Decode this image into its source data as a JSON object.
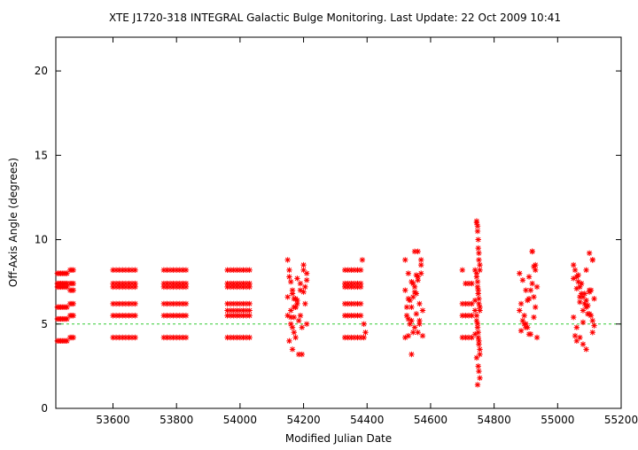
{
  "chart_data": {
    "type": "scatter",
    "title": "XTE J1720-318   INTEGRAL Galactic Bulge Monitoring.  Last Update: 22 Oct 2009 10:41",
    "xlabel": "Modified Julian Date",
    "ylabel": "Off-Axis Angle (degrees)",
    "xlim": [
      53420,
      55200
    ],
    "ylim": [
      0,
      22
    ],
    "x_ticks": [
      53600,
      53800,
      54000,
      54200,
      54400,
      54600,
      54800,
      55000,
      55200
    ],
    "y_ticks": [
      0,
      5,
      10,
      15,
      20
    ],
    "grid": false,
    "legend": "none",
    "reference_line": {
      "y": 5,
      "color": "#33cc33",
      "style": "dashed"
    },
    "marker": {
      "symbol": "asterisk",
      "color": "#ff0000"
    },
    "series": [
      {
        "x": [
          53425,
          53430,
          53435,
          53440,
          53445,
          53450,
          53455,
          53425,
          53430,
          53435,
          53440,
          53445,
          53450,
          53455,
          53425,
          53430,
          53435,
          53440,
          53445,
          53450,
          53455,
          53425,
          53430,
          53435,
          53440,
          53445,
          53450,
          53455,
          53425,
          53430,
          53435,
          53440,
          53445,
          53450,
          53455,
          53425,
          53430,
          53435,
          53440,
          53445,
          53450,
          53455,
          53465,
          53470,
          53475,
          53465,
          53470,
          53475,
          53465,
          53470,
          53475,
          53465,
          53470,
          53475,
          53465,
          53470,
          53475,
          53465,
          53470,
          53475,
          53600,
          53610,
          53620,
          53630,
          53640,
          53650,
          53660,
          53670,
          53600,
          53610,
          53620,
          53630,
          53640,
          53650,
          53660,
          53670,
          53600,
          53610,
          53620,
          53630,
          53640,
          53650,
          53660,
          53670,
          53600,
          53610,
          53620,
          53630,
          53640,
          53650,
          53660,
          53670,
          53600,
          53610,
          53620,
          53630,
          53640,
          53650,
          53660,
          53670,
          53600,
          53610,
          53620,
          53630,
          53640,
          53650,
          53660,
          53670,
          53760,
          53770,
          53780,
          53790,
          53800,
          53810,
          53820,
          53830,
          53760,
          53770,
          53780,
          53790,
          53800,
          53810,
          53820,
          53830,
          53760,
          53770,
          53780,
          53790,
          53800,
          53810,
          53820,
          53830,
          53760,
          53770,
          53780,
          53790,
          53800,
          53810,
          53820,
          53830,
          53760,
          53770,
          53780,
          53790,
          53800,
          53810,
          53820,
          53830,
          53760,
          53770,
          53780,
          53790,
          53800,
          53810,
          53820,
          53830,
          53960,
          53970,
          53980,
          53990,
          54000,
          54010,
          54020,
          54030,
          53960,
          53970,
          53980,
          53990,
          54000,
          54010,
          54020,
          54030,
          53960,
          53970,
          53980,
          53990,
          54000,
          54010,
          54020,
          54030,
          53960,
          53970,
          53980,
          53990,
          54000,
          54010,
          54020,
          54030,
          53960,
          53970,
          53980,
          53990,
          54000,
          54010,
          54020,
          54030,
          53960,
          53970,
          53980,
          53990,
          54000,
          54010,
          54020,
          54030,
          53960,
          53970,
          53980,
          53990,
          54000,
          54010,
          54020,
          54030,
          54150,
          54155,
          54160,
          54165,
          54170,
          54175,
          54150,
          54160,
          54170,
          54180,
          54190,
          54200,
          54210,
          54155,
          54165,
          54175,
          54185,
          54195,
          54205,
          54150,
          54160,
          54170,
          54180,
          54190,
          54200,
          54210,
          54155,
          54165,
          54175,
          54185,
          54195,
          54205,
          54160,
          54180,
          54200,
          54170,
          54190,
          54210,
          54165,
          54175,
          54330,
          54340,
          54350,
          54360,
          54370,
          54380,
          54330,
          54340,
          54350,
          54360,
          54370,
          54380,
          54330,
          54340,
          54350,
          54360,
          54370,
          54380,
          54330,
          54340,
          54350,
          54360,
          54370,
          54380,
          54330,
          54340,
          54350,
          54360,
          54370,
          54380,
          54330,
          54340,
          54350,
          54360,
          54370,
          54380,
          54385,
          54390,
          54395,
          54390,
          54520,
          54530,
          54540,
          54550,
          54560,
          54570,
          54520,
          54530,
          54540,
          54550,
          54560,
          54570,
          54525,
          54535,
          54545,
          54555,
          54565,
          54575,
          54520,
          54530,
          54540,
          54550,
          54560,
          54570,
          54525,
          54535,
          54545,
          54555,
          54565,
          54575,
          54540,
          54550,
          54560,
          54530,
          54545,
          54555,
          54565,
          54700,
          54710,
          54720,
          54730,
          54740,
          54700,
          54710,
          54720,
          54730,
          54740,
          54700,
          54710,
          54720,
          54730,
          54740,
          54700,
          54710,
          54720,
          54730,
          54740,
          54745,
          54748,
          54750,
          54752,
          54755,
          54745,
          54748,
          54750,
          54752,
          54755,
          54745,
          54748,
          54750,
          54752,
          54755,
          54745,
          54748,
          54750,
          54752,
          54755,
          54745,
          54748,
          54750,
          54752,
          54755,
          54745,
          54748,
          54750,
          54752,
          54755,
          54745,
          54750,
          54755,
          54748,
          54752,
          54880,
          54890,
          54900,
          54910,
          54920,
          54930,
          54880,
          54890,
          54900,
          54910,
          54920,
          54930,
          54885,
          54895,
          54905,
          54915,
          54925,
          54935,
          54885,
          54895,
          54905,
          54915,
          54925,
          54935,
          54920,
          54925,
          54930,
          54910,
          54900,
          55050,
          55060,
          55070,
          55080,
          55090,
          55100,
          55110,
          55050,
          55060,
          55070,
          55080,
          55090,
          55100,
          55110,
          55055,
          55065,
          55075,
          55085,
          55095,
          55105,
          55115,
          55055,
          55065,
          55075,
          55085,
          55095,
          55105,
          55115,
          55050,
          55060,
          55070,
          55080,
          55090,
          55100,
          55110,
          55060,
          55080,
          55100,
          55070,
          55090,
          55110
        ],
        "y": [
          7.2,
          7.2,
          7.2,
          7.2,
          7.2,
          7.2,
          7.2,
          8.0,
          8.0,
          8.0,
          8.0,
          8.0,
          8.0,
          8.0,
          6.0,
          6.0,
          6.0,
          6.0,
          6.0,
          6.0,
          6.0,
          5.3,
          5.3,
          5.3,
          5.3,
          5.3,
          5.3,
          5.3,
          4.0,
          4.0,
          4.0,
          4.0,
          4.0,
          4.0,
          4.0,
          7.4,
          7.4,
          7.4,
          7.4,
          7.4,
          7.4,
          7.4,
          8.2,
          8.2,
          8.2,
          7.4,
          7.4,
          7.4,
          6.2,
          6.2,
          6.2,
          5.5,
          5.5,
          5.5,
          4.2,
          4.2,
          4.2,
          7.0,
          7.0,
          7.0,
          8.2,
          8.2,
          8.2,
          8.2,
          8.2,
          8.2,
          8.2,
          8.2,
          7.4,
          7.4,
          7.4,
          7.4,
          7.4,
          7.4,
          7.4,
          7.4,
          6.2,
          6.2,
          6.2,
          6.2,
          6.2,
          6.2,
          6.2,
          6.2,
          5.5,
          5.5,
          5.5,
          5.5,
          5.5,
          5.5,
          5.5,
          5.5,
          4.2,
          4.2,
          4.2,
          4.2,
          4.2,
          4.2,
          4.2,
          4.2,
          7.2,
          7.2,
          7.2,
          7.2,
          7.2,
          7.2,
          7.2,
          7.2,
          8.2,
          8.2,
          8.2,
          8.2,
          8.2,
          8.2,
          8.2,
          8.2,
          7.4,
          7.4,
          7.4,
          7.4,
          7.4,
          7.4,
          7.4,
          7.4,
          6.2,
          6.2,
          6.2,
          6.2,
          6.2,
          6.2,
          6.2,
          6.2,
          5.5,
          5.5,
          5.5,
          5.5,
          5.5,
          5.5,
          5.5,
          5.5,
          4.2,
          4.2,
          4.2,
          4.2,
          4.2,
          4.2,
          4.2,
          4.2,
          7.2,
          7.2,
          7.2,
          7.2,
          7.2,
          7.2,
          7.2,
          7.2,
          8.2,
          8.2,
          8.2,
          8.2,
          8.2,
          8.2,
          8.2,
          8.2,
          7.4,
          7.4,
          7.4,
          7.4,
          7.4,
          7.4,
          7.4,
          7.4,
          6.2,
          6.2,
          6.2,
          6.2,
          6.2,
          6.2,
          6.2,
          6.2,
          5.5,
          5.5,
          5.5,
          5.5,
          5.5,
          5.5,
          5.5,
          5.5,
          4.2,
          4.2,
          4.2,
          4.2,
          4.2,
          4.2,
          4.2,
          4.2,
          7.2,
          7.2,
          7.2,
          7.2,
          7.2,
          7.2,
          7.2,
          7.2,
          5.8,
          5.8,
          5.8,
          5.8,
          5.8,
          5.8,
          5.8,
          5.8,
          8.8,
          8.2,
          7.5,
          7.0,
          6.5,
          6.0,
          5.5,
          5.0,
          4.5,
          6.2,
          7.4,
          8.5,
          8.0,
          7.8,
          6.8,
          6.0,
          5.2,
          4.8,
          7.2,
          6.6,
          5.8,
          5.4,
          6.4,
          7.0,
          8.2,
          5.0,
          4.0,
          3.5,
          4.2,
          3.2,
          3.2,
          6.2,
          5.4,
          7.7,
          6.9,
          6.0,
          5.5,
          7.6,
          4.8,
          6.5,
          8.2,
          8.2,
          8.2,
          8.2,
          8.2,
          8.2,
          7.4,
          7.4,
          7.4,
          7.4,
          7.4,
          7.4,
          6.2,
          6.2,
          6.2,
          6.2,
          6.2,
          6.2,
          5.5,
          5.5,
          5.5,
          5.5,
          5.5,
          5.5,
          4.2,
          4.2,
          4.2,
          4.2,
          4.2,
          4.2,
          7.2,
          7.2,
          7.2,
          7.2,
          7.2,
          7.2,
          8.8,
          5.0,
          4.5,
          4.2,
          8.8,
          8.0,
          7.5,
          9.3,
          9.3,
          8.5,
          7.0,
          6.5,
          6.0,
          7.2,
          7.8,
          8.0,
          5.5,
          5.0,
          4.5,
          6.8,
          6.2,
          5.8,
          4.2,
          4.3,
          5.2,
          4.8,
          4.5,
          8.8,
          6.0,
          6.4,
          7.4,
          5.6,
          5.0,
          4.3,
          3.2,
          6.9,
          7.6,
          5.3,
          6.6,
          7.9,
          5.2,
          8.2,
          7.4,
          7.4,
          7.4,
          8.2,
          6.2,
          6.2,
          6.2,
          6.2,
          6.4,
          5.5,
          5.5,
          5.5,
          5.5,
          5.8,
          4.2,
          4.2,
          4.2,
          4.2,
          4.4,
          11.0,
          10.5,
          10.0,
          9.2,
          8.5,
          8.0,
          7.5,
          7.0,
          6.5,
          6.0,
          5.5,
          5.0,
          4.5,
          4.0,
          3.5,
          11.1,
          10.8,
          9.5,
          8.8,
          8.2,
          7.8,
          7.2,
          6.8,
          6.2,
          5.8,
          5.2,
          4.8,
          4.2,
          3.8,
          3.2,
          3.0,
          2.5,
          1.8,
          1.4,
          2.2,
          8.0,
          7.6,
          7.0,
          6.5,
          9.3,
          8.5,
          5.8,
          5.2,
          4.8,
          4.4,
          7.4,
          8.2,
          6.2,
          5.5,
          4.8,
          4.4,
          6.6,
          7.2,
          4.6,
          5.0,
          6.4,
          7.0,
          5.4,
          4.2,
          9.3,
          8.4,
          6.0,
          7.8,
          5.0,
          8.5,
          7.8,
          7.2,
          6.6,
          6.0,
          9.2,
          8.8,
          5.4,
          4.8,
          4.2,
          3.8,
          3.5,
          5.6,
          5.2,
          8.2,
          7.5,
          6.8,
          6.2,
          5.6,
          7.0,
          6.5,
          4.3,
          7.9,
          7.4,
          6.8,
          6.1,
          5.5,
          4.9,
          7.7,
          7.1,
          6.3,
          5.8,
          8.2,
          6.9,
          4.5,
          4.0,
          5.1,
          7.0,
          6.6,
          6.4,
          8.8
        ]
      }
    ]
  }
}
